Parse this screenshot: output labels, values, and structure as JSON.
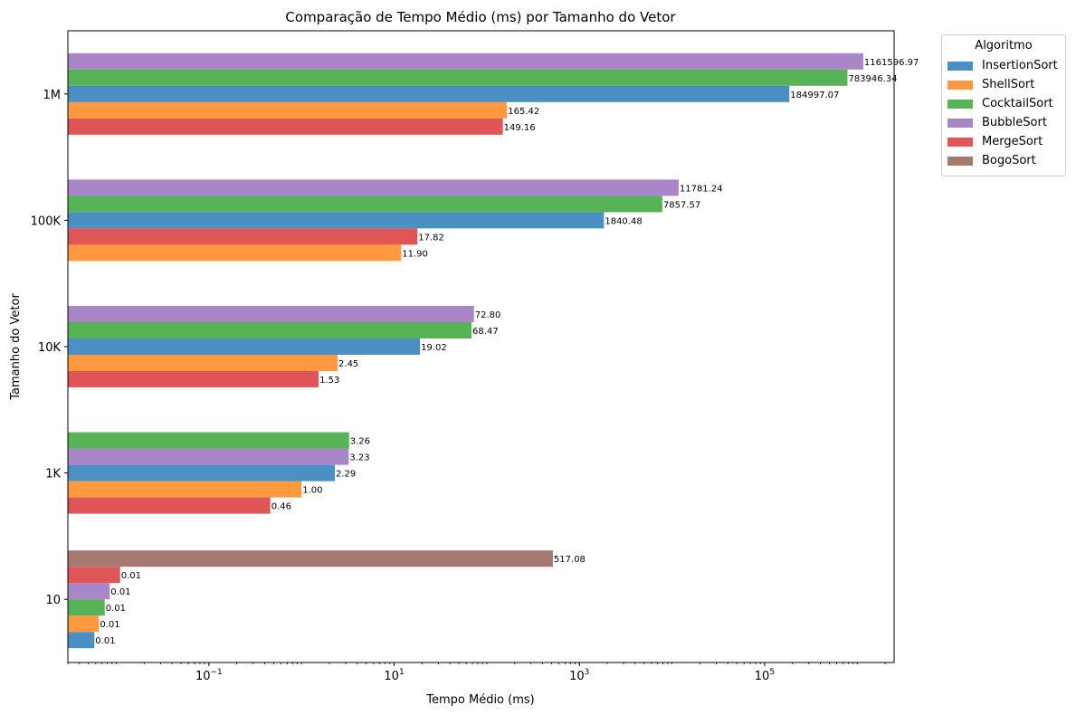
{
  "chart_data": {
    "type": "bar",
    "orientation": "horizontal",
    "title": "Comparação de Tempo Médio (ms) por Tamanho do Vetor",
    "xlabel": "Tempo Médio (ms)",
    "ylabel": "Tamanho do Vetor",
    "xscale": "log",
    "xlim": [
      0.003,
      2500000
    ],
    "x_ticks": [
      {
        "value": 0.1,
        "base": "10",
        "exp": "−1"
      },
      {
        "value": 10,
        "base": "10",
        "exp": "1"
      },
      {
        "value": 1000,
        "base": "10",
        "exp": "3"
      },
      {
        "value": 100000,
        "base": "10",
        "exp": "5"
      }
    ],
    "grid": false,
    "legend": {
      "title": "Algoritmo",
      "placement": "outside-top-right",
      "entries": [
        {
          "name": "InsertionSort",
          "color": "#4a90c2"
        },
        {
          "name": "ShellSort",
          "color": "#ff993f"
        },
        {
          "name": "CocktailSort",
          "color": "#56b356"
        },
        {
          "name": "BubbleSort",
          "color": "#a886c8"
        },
        {
          "name": "MergeSort",
          "color": "#e05555"
        },
        {
          "name": "BogoSort",
          "color": "#a57870"
        }
      ]
    },
    "groups": [
      {
        "category": "10",
        "bars": [
          {
            "algo": "InsertionSort",
            "value": 0.0058,
            "label": "0.01"
          },
          {
            "algo": "ShellSort",
            "value": 0.0065,
            "label": "0.01"
          },
          {
            "algo": "CocktailSort",
            "value": 0.0075,
            "label": "0.01"
          },
          {
            "algo": "BubbleSort",
            "value": 0.0085,
            "label": "0.01"
          },
          {
            "algo": "MergeSort",
            "value": 0.011,
            "label": "0.01"
          },
          {
            "algo": "BogoSort",
            "value": 517.08,
            "label": "517.08"
          }
        ]
      },
      {
        "category": "1K",
        "bars": [
          {
            "algo": "MergeSort",
            "value": 0.46,
            "label": "0.46"
          },
          {
            "algo": "ShellSort",
            "value": 1.0,
            "label": "1.00"
          },
          {
            "algo": "InsertionSort",
            "value": 2.29,
            "label": "2.29"
          },
          {
            "algo": "BubbleSort",
            "value": 3.23,
            "label": "3.23"
          },
          {
            "algo": "CocktailSort",
            "value": 3.26,
            "label": "3.26"
          }
        ]
      },
      {
        "category": "10K",
        "bars": [
          {
            "algo": "MergeSort",
            "value": 1.53,
            "label": "1.53"
          },
          {
            "algo": "ShellSort",
            "value": 2.45,
            "label": "2.45"
          },
          {
            "algo": "InsertionSort",
            "value": 19.02,
            "label": "19.02"
          },
          {
            "algo": "CocktailSort",
            "value": 68.47,
            "label": "68.47"
          },
          {
            "algo": "BubbleSort",
            "value": 72.8,
            "label": "72.80"
          }
        ]
      },
      {
        "category": "100K",
        "bars": [
          {
            "algo": "ShellSort",
            "value": 11.9,
            "label": "11.90"
          },
          {
            "algo": "MergeSort",
            "value": 17.82,
            "label": "17.82"
          },
          {
            "algo": "InsertionSort",
            "value": 1840.48,
            "label": "1840.48"
          },
          {
            "algo": "CocktailSort",
            "value": 7857.57,
            "label": "7857.57"
          },
          {
            "algo": "BubbleSort",
            "value": 11781.24,
            "label": "11781.24"
          }
        ]
      },
      {
        "category": "1M",
        "bars": [
          {
            "algo": "MergeSort",
            "value": 149.16,
            "label": "149.16"
          },
          {
            "algo": "ShellSort",
            "value": 165.42,
            "label": "165.42"
          },
          {
            "algo": "InsertionSort",
            "value": 184997.07,
            "label": "184997.07"
          },
          {
            "algo": "CocktailSort",
            "value": 783946.34,
            "label": "783946.34"
          },
          {
            "algo": "BubbleSort",
            "value": 1161596.97,
            "label": "1161596.97"
          }
        ]
      }
    ]
  }
}
